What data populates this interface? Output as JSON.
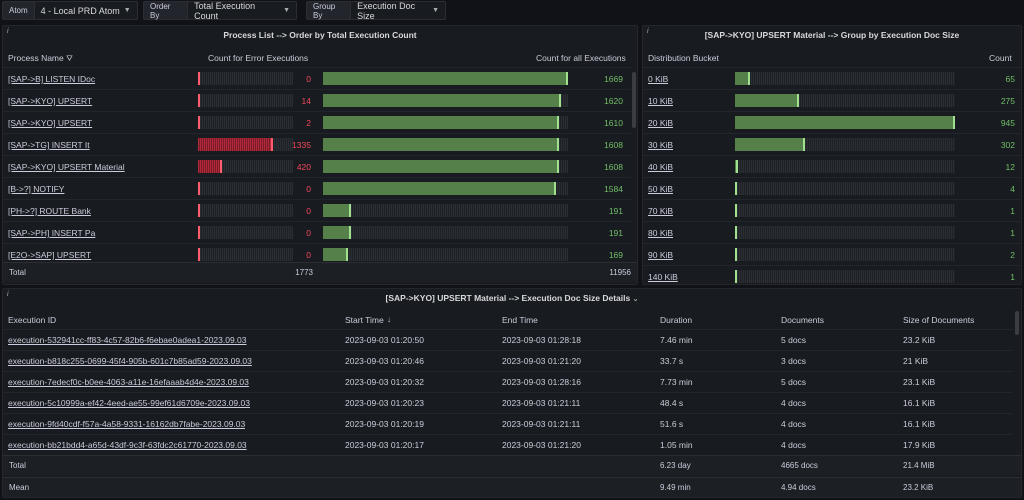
{
  "vars": {
    "atom": {
      "label": "Atom",
      "value": "4 - Local PRD Atom"
    },
    "order_by": {
      "label": "Order By",
      "value": "Total Execution Count"
    },
    "group_by": {
      "label": "Group By",
      "value": "Execution Doc Size"
    }
  },
  "process_panel": {
    "title": "Process List --> Order by Total Execution Count",
    "col_name": "Process Name",
    "col_err": "Count for Error Executions",
    "col_all": "Count for all Executions",
    "rows": [
      {
        "name": "[SAP->B] LISTEN IDoc",
        "err": "0",
        "err_frac": 0.0,
        "all": "1669",
        "all_frac": 1.0
      },
      {
        "name": "[SAP->KYO] UPSERT",
        "err": "14",
        "err_frac": 0.01,
        "all": "1620",
        "all_frac": 0.97
      },
      {
        "name": "[SAP->KYO] UPSERT",
        "err": "2",
        "err_frac": 0.003,
        "all": "1610",
        "all_frac": 0.965
      },
      {
        "name": "[SAP->TG] INSERT It",
        "err": "1335",
        "err_frac": 0.79,
        "all": "1608",
        "all_frac": 0.963
      },
      {
        "name": "[SAP->KYO] UPSERT Material",
        "err": "420",
        "err_frac": 0.25,
        "all": "1608",
        "all_frac": 0.963
      },
      {
        "name": "[B->?] NOTIFY",
        "err": "0",
        "err_frac": 0.0,
        "all": "1584",
        "all_frac": 0.95
      },
      {
        "name": "[PH->?] ROUTE Bank",
        "err": "0",
        "err_frac": 0.0,
        "all": "191",
        "all_frac": 0.114
      },
      {
        "name": "[SAP->PH] INSERT Pa",
        "err": "0",
        "err_frac": 0.0,
        "all": "191",
        "all_frac": 0.114
      },
      {
        "name": "[E2O->SAP] UPSERT",
        "err": "0",
        "err_frac": 0.0,
        "all": "169",
        "all_frac": 0.101
      }
    ],
    "total_label": "Total",
    "total_err": "1773",
    "total_all": "11956"
  },
  "group_panel": {
    "title": "[SAP->KYO] UPSERT Material --> Group by Execution Doc Size",
    "col_bucket": "Distribution Bucket",
    "col_count": "Count",
    "rows": [
      {
        "bucket": "0 KiB",
        "count": "65",
        "frac": 0.069
      },
      {
        "bucket": "10 KiB",
        "count": "275",
        "frac": 0.291
      },
      {
        "bucket": "20 KiB",
        "count": "945",
        "frac": 1.0
      },
      {
        "bucket": "30 KiB",
        "count": "302",
        "frac": 0.32
      },
      {
        "bucket": "40 KiB",
        "count": "12",
        "frac": 0.013
      },
      {
        "bucket": "50 KiB",
        "count": "4",
        "frac": 0.004
      },
      {
        "bucket": "70 KiB",
        "count": "1",
        "frac": 0.001
      },
      {
        "bucket": "80 KiB",
        "count": "1",
        "frac": 0.001
      },
      {
        "bucket": "90 KiB",
        "count": "2",
        "frac": 0.002
      },
      {
        "bucket": "140 KiB",
        "count": "1",
        "frac": 0.001
      }
    ]
  },
  "details_panel": {
    "title": "[SAP->KYO] UPSERT Material --> Execution Doc Size Details",
    "cols": [
      "Execution ID",
      "Start Time",
      "End Time",
      "Duration",
      "Documents",
      "Size of Documents"
    ],
    "rows": [
      [
        "execution-532941cc-ff83-4c57-82b6-f6ebae0adea1-2023.09.03",
        "2023-09-03 01:20:50",
        "2023-09-03 01:28:18",
        "7.46 min",
        "5 docs",
        "23.2 KiB"
      ],
      [
        "execution-b818c255-0699-45f4-905b-601c7b85ad59-2023.09.03",
        "2023-09-03 01:20:46",
        "2023-09-03 01:21:20",
        "33.7 s",
        "3 docs",
        "21 KiB"
      ],
      [
        "execution-7edecf0c-b0ee-4063-a11e-16efaaab4d4e-2023.09.03",
        "2023-09-03 01:20:32",
        "2023-09-03 01:28:16",
        "7.73 min",
        "5 docs",
        "23.1 KiB"
      ],
      [
        "execution-5c10999a-ef42-4eed-ae55-99ef61d6709e-2023.09.03",
        "2023-09-03 01:20:23",
        "2023-09-03 01:21:11",
        "48.4 s",
        "4 docs",
        "16.1 KiB"
      ],
      [
        "execution-9fd40cdf-f57a-4a58-9331-16162db7fabe-2023.09.03",
        "2023-09-03 01:20:19",
        "2023-09-03 01:21:11",
        "51.6 s",
        "4 docs",
        "16.1 KiB"
      ],
      [
        "execution-bb21bdd4-a65d-43df-9c3f-63fdc2c61770-2023.09.03",
        "2023-09-03 01:20:17",
        "2023-09-03 01:21:20",
        "1.05 min",
        "4 docs",
        "17.9 KiB"
      ]
    ],
    "total": {
      "label": "Total",
      "duration": "6.23 day",
      "documents": "4665 docs",
      "size": "21.4 MiB"
    },
    "mean": {
      "label": "Mean",
      "duration": "9.49 min",
      "documents": "4.94 docs",
      "size": "23.2 KiB"
    }
  }
}
